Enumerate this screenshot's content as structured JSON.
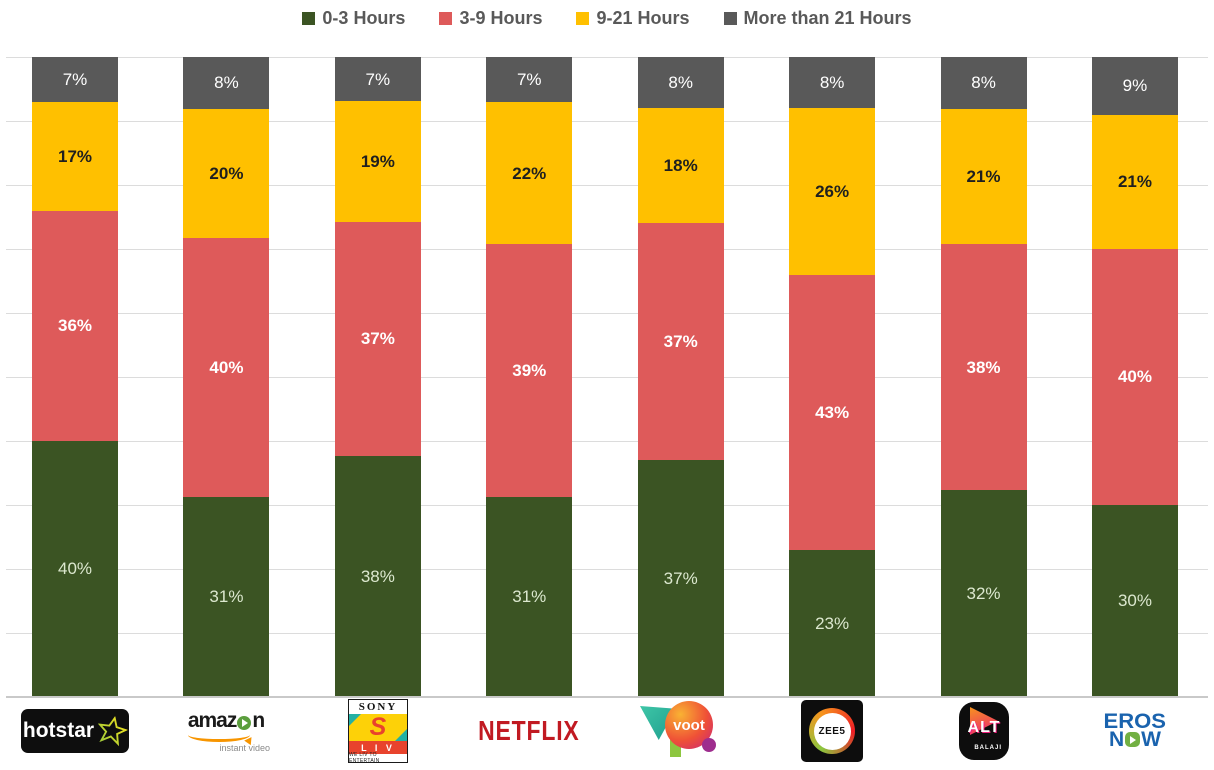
{
  "chart_data": {
    "type": "bar",
    "stacked": true,
    "title": "",
    "xlabel": "",
    "ylabel": "",
    "ylim": [
      0,
      100
    ],
    "gridline_interval_percent": 10,
    "grid": true,
    "legend_position": "top",
    "value_suffix": "%",
    "stack_order_top_to_bottom": [
      "More than 21 Hours",
      "9-21 Hours",
      "3-9 Hours",
      "0-3 Hours"
    ],
    "categories": [
      "Hotstar",
      "Amazon Instant Video",
      "Sony LIV",
      "Netflix",
      "Voot",
      "ZEE5",
      "ALT Balaji",
      "Eros Now"
    ],
    "series": [
      {
        "name": "0-3 Hours",
        "color": "#3B5423",
        "label_color": "#DCE8CF",
        "label_bold": false,
        "values": [
          40,
          31,
          38,
          31,
          37,
          23,
          32,
          30
        ]
      },
      {
        "name": "3-9 Hours",
        "color": "#DE5A5A",
        "label_color": "#FFFFFF",
        "label_bold": true,
        "values": [
          36,
          40,
          37,
          39,
          37,
          43,
          38,
          40
        ]
      },
      {
        "name": "9-21 Hours",
        "color": "#FFC000",
        "label_color": "#1F1F1F",
        "label_bold": true,
        "values": [
          17,
          20,
          19,
          22,
          18,
          26,
          21,
          21
        ]
      },
      {
        "name": "More than 21 Hours",
        "color": "#595959",
        "label_color": "#FFFFFF",
        "label_bold": false,
        "values": [
          7,
          8,
          7,
          7,
          8,
          8,
          8,
          9
        ]
      }
    ]
  },
  "colors": {
    "gridline": "#DCDCDC",
    "baseline": "#C9C9C9",
    "legend_text": "#595959"
  },
  "logos": {
    "hotstar": {
      "text": "hotstar"
    },
    "amazon": {
      "text_left": "amaz",
      "text_right": "n",
      "subtext": "instant video"
    },
    "sonyliv": {
      "top": "SONY",
      "monogram": "S",
      "band": "L I V",
      "tagline": "WE LIV TO ENTERTAIN"
    },
    "netflix": {
      "text": "NETFLIX"
    },
    "voot": {
      "text": "voot"
    },
    "zee5": {
      "text": "ZEE5"
    },
    "altbalaji": {
      "text": "ALT",
      "subtext": "BALAJI"
    },
    "erosnow": {
      "line1": "EROS",
      "line2_left": "N",
      "line2_right": "W"
    }
  }
}
